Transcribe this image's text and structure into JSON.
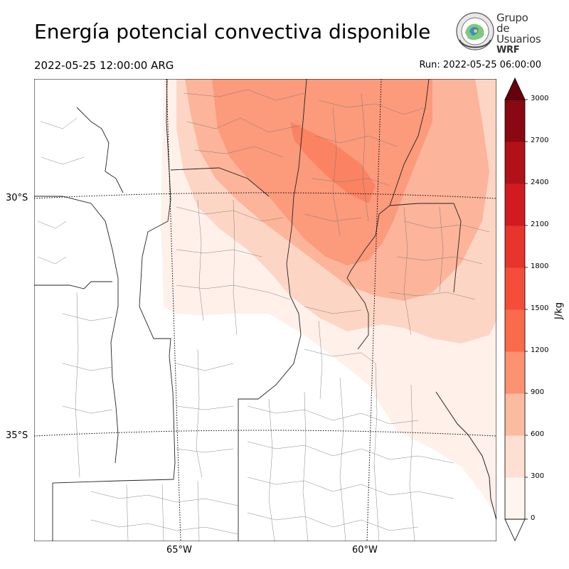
{
  "header": {
    "title": "Energía potencial convectiva disponible",
    "valid_time": "2022-05-25 12:00:00 ARG",
    "run_time": "Run: 2022-05-25 06:00:00"
  },
  "logo": {
    "line1": "Grupo de",
    "line2": "Usuarios",
    "line3": "WRF"
  },
  "map": {
    "lat_labels": [
      "30°S",
      "35°S"
    ],
    "lon_labels": [
      "65°W",
      "60°W"
    ]
  },
  "colorbar": {
    "unit": "J/kg",
    "ticks": [
      "0",
      "300",
      "600",
      "900",
      "1200",
      "1500",
      "1800",
      "2100",
      "2400",
      "2700",
      "3000"
    ],
    "levels": [
      0,
      300,
      600,
      900,
      1200,
      1500,
      1800,
      2100,
      2400,
      2700,
      3000
    ],
    "colors": [
      "#fff5f0",
      "#fee0d2",
      "#fcbba1",
      "#fc9272",
      "#fb6a4a",
      "#f44e3b",
      "#e7352b",
      "#d11b20",
      "#b11218",
      "#8a0812",
      "#67000d"
    ],
    "extend": "both"
  }
}
